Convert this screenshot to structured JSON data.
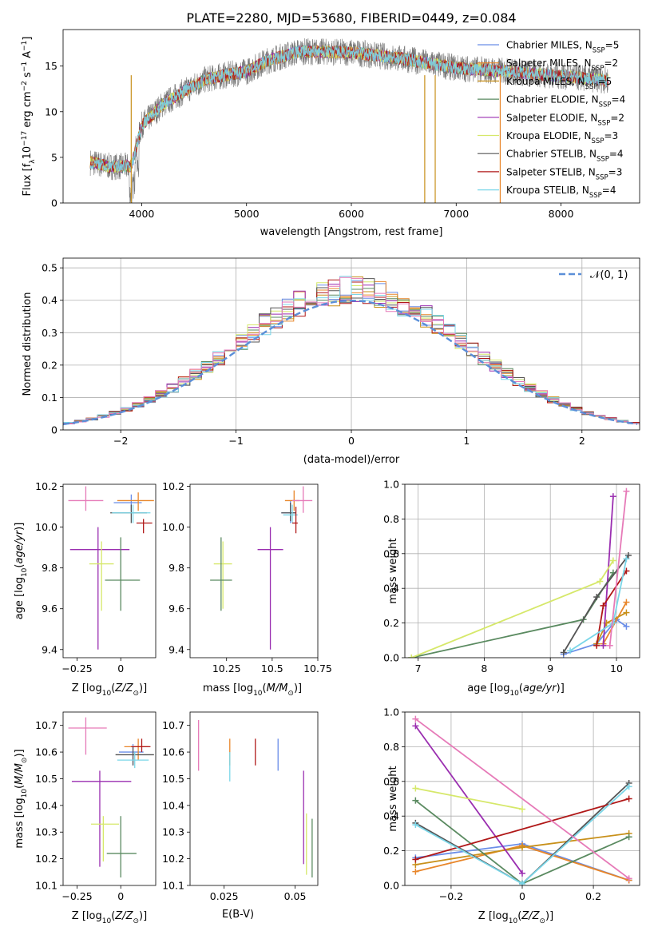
{
  "figure": {
    "title": "PLATE=2280, MJD=53680, FIBERID=0449, z=0.084"
  },
  "colors": {
    "Chabrier MILES": "#6a8ee8",
    "Salpeter MILES": "#e8862a",
    "Kroupa MILES": "#c8901a",
    "Chabrier ELODIE": "#5a8a60",
    "Salpeter ELODIE": "#9a2eb0",
    "Kroupa ELODIE": "#d6e86a",
    "Chabrier STELIB": "#555555",
    "Salpeter STELIB": "#b01818",
    "Kroupa STELIB": "#7ad6e8",
    "Pink": "#e67ab8",
    "Normal": "#5b8fd8"
  },
  "chart_data": [
    {
      "id": "spectrum",
      "type": "line",
      "xlabel": "wavelength [Angstrom, rest frame]",
      "ylabel": "Flux [f_λ10^-17 erg cm^-2 s^-1 A^-1]",
      "xlim": [
        3250,
        8750
      ],
      "ylim": [
        0,
        19
      ],
      "xticks": [
        4000,
        5000,
        6000,
        7000,
        8000
      ],
      "yticks": [
        0,
        5,
        10,
        15
      ],
      "legend_position": "top-right",
      "legend": [
        "Chabrier MILES, N_SSP=5",
        "Salpeter MILES, N_SSP=2",
        "Kroupa MILES, N_SSP=5",
        "Chabrier ELODIE, N_SSP=4",
        "Salpeter ELODIE, N_SSP=2",
        "Kroupa ELODIE, N_SSP=3",
        "Chabrier STELIB, N_SSP=4",
        "Salpeter STELIB, N_SSP=3",
        "Kroupa STELIB, N_SSP=4"
      ],
      "continuum": {
        "x": [
          3500,
          3700,
          3900,
          4000,
          4200,
          4400,
          4600,
          4800,
          5000,
          5200,
          5500,
          6000,
          6500,
          7000,
          7500,
          8000,
          8500
        ],
        "y": [
          4.5,
          4.0,
          4.0,
          8.5,
          10.8,
          12.2,
          13.5,
          14.0,
          14.4,
          15.6,
          16.6,
          16.5,
          15.8,
          14.8,
          14.4,
          13.9,
          13.4
        ]
      }
    },
    {
      "id": "residuals",
      "type": "line",
      "xlabel": "(data-model)/error",
      "ylabel": "Normed distribution",
      "xlim": [
        -2.5,
        2.5
      ],
      "ylim": [
        0,
        0.53
      ],
      "xticks": [
        -2,
        -1,
        0,
        1,
        2
      ],
      "yticks": [
        0.0,
        0.1,
        0.2,
        0.3,
        0.4,
        0.5
      ],
      "grid": true,
      "legend_label": "𝒩(0, 1)",
      "legend_position": "top-right"
    },
    {
      "id": "age_Z",
      "type": "scatter",
      "xlabel": "Z [log10(Z/Z⊙)]",
      "ylabel": "age [log10(age/yr)]",
      "xlim": [
        -0.33,
        0.2
      ],
      "ylim": [
        9.36,
        10.21
      ],
      "xticks": [
        -0.25,
        0.0
      ],
      "yticks": [
        9.4,
        9.6,
        9.8,
        10.0,
        10.2
      ],
      "points": [
        {
          "color": "Chabrier MILES",
          "x": 0.06,
          "y": 10.12,
          "xerr": [
            0.1,
            0.06
          ],
          "yerr": [
            0.04,
            0.04
          ]
        },
        {
          "color": "Salpeter MILES",
          "x": 0.1,
          "y": 10.13,
          "xerr": [
            0.12,
            0.09
          ],
          "yerr": [
            0.05,
            0.04
          ]
        },
        {
          "color": "Chabrier STELIB",
          "x": 0.06,
          "y": 10.07,
          "xerr": [
            0.12,
            0.09
          ],
          "yerr": [
            0.05,
            0.04
          ]
        },
        {
          "color": "Kroupa STELIB",
          "x": 0.07,
          "y": 10.07,
          "xerr": [
            0.12,
            0.1
          ],
          "yerr": [
            0.05,
            0.04
          ]
        },
        {
          "color": "Salpeter STELIB",
          "x": 0.13,
          "y": 10.02,
          "xerr": [
            0.04,
            0.05
          ],
          "yerr": [
            0.05,
            0.02
          ]
        },
        {
          "color": "Pink",
          "x": -0.2,
          "y": 10.13,
          "xerr": [
            0.1,
            0.1
          ],
          "yerr": [
            0.05,
            0.07
          ]
        },
        {
          "color": "Salpeter ELODIE",
          "x": -0.13,
          "y": 9.89,
          "xerr": [
            0.16,
            0.18
          ],
          "yerr": [
            0.49,
            0.11
          ]
        },
        {
          "color": "Kroupa ELODIE",
          "x": -0.11,
          "y": 9.82,
          "xerr": [
            0.07,
            0.07
          ],
          "yerr": [
            0.23,
            0.11
          ]
        },
        {
          "color": "Chabrier ELODIE",
          "x": 0.0,
          "y": 9.74,
          "xerr": [
            0.09,
            0.11
          ],
          "yerr": [
            0.15,
            0.21
          ]
        }
      ]
    },
    {
      "id": "age_mass",
      "type": "scatter",
      "xlabel": "mass [log10(M/M⊙)]",
      "ylabel": "",
      "xlim": [
        10.05,
        10.75
      ],
      "ylim": [
        9.36,
        10.21
      ],
      "xticks": [
        10.25,
        10.5,
        10.75
      ],
      "yticks": [
        9.4,
        9.6,
        9.8,
        10.0,
        10.2
      ],
      "points": [
        {
          "color": "Chabrier MILES",
          "x": 10.6,
          "y": 10.07,
          "xerr": [
            0.05,
            0.03
          ],
          "yerr": [
            0.05,
            0.06
          ]
        },
        {
          "color": "Salpeter MILES",
          "x": 10.62,
          "y": 10.13,
          "xerr": [
            0.05,
            0.03
          ],
          "yerr": [
            0.05,
            0.05
          ]
        },
        {
          "color": "Chabrier STELIB",
          "x": 10.6,
          "y": 10.07,
          "xerr": [
            0.05,
            0.03
          ],
          "yerr": [
            0.04,
            0.05
          ]
        },
        {
          "color": "Kroupa STELIB",
          "x": 10.61,
          "y": 10.06,
          "xerr": [
            0.05,
            0.03
          ],
          "yerr": [
            0.04,
            0.05
          ]
        },
        {
          "color": "Salpeter STELIB",
          "x": 10.63,
          "y": 10.02,
          "xerr": [
            0.02,
            0.01
          ],
          "yerr": [
            0.05,
            0.08
          ]
        },
        {
          "color": "Pink",
          "x": 10.67,
          "y": 10.13,
          "xerr": [
            0.06,
            0.05
          ],
          "yerr": [
            0.06,
            0.07
          ]
        },
        {
          "color": "Salpeter ELODIE",
          "x": 10.49,
          "y": 9.89,
          "xerr": [
            0.07,
            0.07
          ],
          "yerr": [
            0.49,
            0.11
          ]
        },
        {
          "color": "Kroupa ELODIE",
          "x": 10.23,
          "y": 9.82,
          "xerr": [
            0.05,
            0.05
          ],
          "yerr": [
            0.22,
            0.11
          ]
        },
        {
          "color": "Chabrier ELODIE",
          "x": 10.22,
          "y": 9.74,
          "xerr": [
            0.06,
            0.06
          ],
          "yerr": [
            0.15,
            0.21
          ]
        }
      ]
    },
    {
      "id": "weight_age",
      "type": "line",
      "xlabel": "age [log10(age/yr)]",
      "ylabel": "mass weight",
      "xlim": [
        6.8,
        10.35
      ],
      "ylim": [
        0,
        1
      ],
      "xticks": [
        7,
        8,
        9,
        10
      ],
      "yticks": [
        0.0,
        0.2,
        0.4,
        0.6,
        0.8,
        1.0
      ],
      "grid": true,
      "series": [
        {
          "color": "Chabrier MILES",
          "x": [
            9.2,
            9.7,
            10.0,
            10.15
          ],
          "y": [
            0.02,
            0.08,
            0.22,
            0.18
          ]
        },
        {
          "color": "Salpeter MILES",
          "x": [
            9.8,
            10.15
          ],
          "y": [
            0.08,
            0.32
          ]
        },
        {
          "color": "Kroupa MILES",
          "x": [
            9.7,
            9.85,
            10.15
          ],
          "y": [
            0.08,
            0.2,
            0.26
          ]
        },
        {
          "color": "Chabrier ELODIE",
          "x": [
            6.9,
            9.5,
            9.95
          ],
          "y": [
            0.0,
            0.22,
            0.49
          ]
        },
        {
          "color": "Salpeter ELODIE",
          "x": [
            9.8,
            9.95
          ],
          "y": [
            0.07,
            0.93
          ]
        },
        {
          "color": "Kroupa ELODIE",
          "x": [
            6.9,
            9.75,
            9.95
          ],
          "y": [
            0.0,
            0.44,
            0.56
          ]
        },
        {
          "color": "Chabrier STELIB",
          "x": [
            9.2,
            9.7,
            10.18
          ],
          "y": [
            0.03,
            0.35,
            0.59
          ]
        },
        {
          "color": "Salpeter STELIB",
          "x": [
            9.7,
            9.8,
            10.15
          ],
          "y": [
            0.07,
            0.3,
            0.5
          ]
        },
        {
          "color": "Kroupa STELIB",
          "x": [
            9.3,
            9.95,
            10.15
          ],
          "y": [
            0.04,
            0.2,
            0.57
          ]
        },
        {
          "color": "Pink",
          "x": [
            9.9,
            10.15
          ],
          "y": [
            0.07,
            0.96
          ]
        }
      ]
    },
    {
      "id": "mass_Z",
      "type": "scatter",
      "xlabel": "Z [log10(Z/Z⊙)]",
      "ylabel": "mass [log10(M/M⊙)]",
      "xlim": [
        -0.33,
        0.2
      ],
      "ylim": [
        10.1,
        10.75
      ],
      "xticks": [
        -0.25,
        0.0
      ],
      "yticks": [
        10.1,
        10.2,
        10.3,
        10.4,
        10.5,
        10.6,
        10.7
      ],
      "points": [
        {
          "color": "Chabrier MILES",
          "x": 0.07,
          "y": 10.6,
          "xerr": [
            0.08,
            0.06
          ],
          "yerr": [
            0.05,
            0.03
          ]
        },
        {
          "color": "Salpeter MILES",
          "x": 0.1,
          "y": 10.62,
          "xerr": [
            0.08,
            0.06
          ],
          "yerr": [
            0.05,
            0.03
          ]
        },
        {
          "color": "Chabrier STELIB",
          "x": 0.07,
          "y": 10.59,
          "xerr": [
            0.1,
            0.12
          ],
          "yerr": [
            0.04,
            0.03
          ]
        },
        {
          "color": "Kroupa STELIB",
          "x": 0.08,
          "y": 10.57,
          "xerr": [
            0.1,
            0.08
          ],
          "yerr": [
            0.03,
            0.03
          ]
        },
        {
          "color": "Salpeter STELIB",
          "x": 0.12,
          "y": 10.62,
          "xerr": [
            0.06,
            0.05
          ],
          "yerr": [
            0.02,
            0.03
          ]
        },
        {
          "color": "Pink",
          "x": -0.2,
          "y": 10.69,
          "xerr": [
            0.1,
            0.12
          ],
          "yerr": [
            0.1,
            0.04
          ]
        },
        {
          "color": "Salpeter ELODIE",
          "x": -0.12,
          "y": 10.49,
          "xerr": [
            0.16,
            0.18
          ],
          "yerr": [
            0.32,
            0.04
          ]
        },
        {
          "color": "Kroupa ELODIE",
          "x": -0.1,
          "y": 10.33,
          "xerr": [
            0.07,
            0.09
          ],
          "yerr": [
            0.14,
            0.03
          ]
        },
        {
          "color": "Chabrier ELODIE",
          "x": 0.0,
          "y": 10.22,
          "xerr": [
            0.08,
            0.09
          ],
          "yerr": [
            0.09,
            0.14
          ]
        }
      ]
    },
    {
      "id": "mass_ebv",
      "type": "scatter",
      "xlabel": "E(B-V)",
      "ylabel": "",
      "xlim": [
        0.013,
        0.058
      ],
      "ylim": [
        10.1,
        10.75
      ],
      "xticks": [
        0.025,
        0.05
      ],
      "yticks": [
        10.1,
        10.2,
        10.3,
        10.4,
        10.5,
        10.6,
        10.7
      ],
      "points": [
        {
          "color": "Pink",
          "x": 0.016,
          "y": 10.63,
          "yerr": [
            0.1,
            0.09
          ]
        },
        {
          "color": "Salpeter MILES",
          "x": 0.027,
          "y": 10.6,
          "yerr": [
            0.05,
            0.05
          ]
        },
        {
          "color": "Kroupa STELIB",
          "x": 0.027,
          "y": 10.55,
          "yerr": [
            0.06,
            0.05
          ]
        },
        {
          "color": "Salpeter STELIB",
          "x": 0.036,
          "y": 10.6,
          "yerr": [
            0.05,
            0.05
          ]
        },
        {
          "color": "Chabrier MILES",
          "x": 0.044,
          "y": 10.59,
          "yerr": [
            0.06,
            0.06
          ]
        },
        {
          "color": "Salpeter ELODIE",
          "x": 0.053,
          "y": 10.39,
          "yerr": [
            0.21,
            0.14
          ]
        },
        {
          "color": "Kroupa ELODIE",
          "x": 0.054,
          "y": 10.25,
          "yerr": [
            0.11,
            0.12
          ]
        },
        {
          "color": "Chabrier ELODIE",
          "x": 0.056,
          "y": 10.22,
          "yerr": [
            0.09,
            0.13
          ]
        }
      ]
    },
    {
      "id": "weight_Z",
      "type": "line",
      "xlabel": "Z [log10(Z/Z⊙)]",
      "ylabel": "mass weight",
      "xlim": [
        -0.33,
        0.33
      ],
      "ylim": [
        0,
        1
      ],
      "xticks": [
        -0.2,
        0.0,
        0.2
      ],
      "yticks": [
        0.0,
        0.2,
        0.4,
        0.6,
        0.8,
        1.0
      ],
      "grid": true,
      "series": [
        {
          "color": "Chabrier MILES",
          "x": [
            -0.3,
            0.0,
            0.3
          ],
          "y": [
            0.16,
            0.24,
            0.03
          ]
        },
        {
          "color": "Salpeter MILES",
          "x": [
            -0.3,
            0.0,
            0.3
          ],
          "y": [
            0.08,
            0.23,
            0.03
          ]
        },
        {
          "color": "Kroupa MILES",
          "x": [
            -0.3,
            0.0,
            0.3
          ],
          "y": [
            0.12,
            0.22,
            0.3
          ]
        },
        {
          "color": "Chabrier ELODIE",
          "x": [
            -0.3,
            0.0,
            0.3
          ],
          "y": [
            0.49,
            0.01,
            0.28
          ]
        },
        {
          "color": "Salpeter ELODIE",
          "x": [
            -0.3,
            0.0
          ],
          "y": [
            0.92,
            0.07
          ]
        },
        {
          "color": "Kroupa ELODIE",
          "x": [
            -0.3,
            0.0
          ],
          "y": [
            0.56,
            0.44
          ]
        },
        {
          "color": "Chabrier STELIB",
          "x": [
            -0.3,
            0.0,
            0.3
          ],
          "y": [
            0.36,
            0.01,
            0.59
          ]
        },
        {
          "color": "Salpeter STELIB",
          "x": [
            -0.3,
            0.3
          ],
          "y": [
            0.15,
            0.5
          ]
        },
        {
          "color": "Kroupa STELIB",
          "x": [
            -0.3,
            0.0,
            0.3
          ],
          "y": [
            0.35,
            0.01,
            0.57
          ]
        },
        {
          "color": "Pink",
          "x": [
            -0.3,
            0.3
          ],
          "y": [
            0.96,
            0.04
          ]
        }
      ]
    }
  ]
}
